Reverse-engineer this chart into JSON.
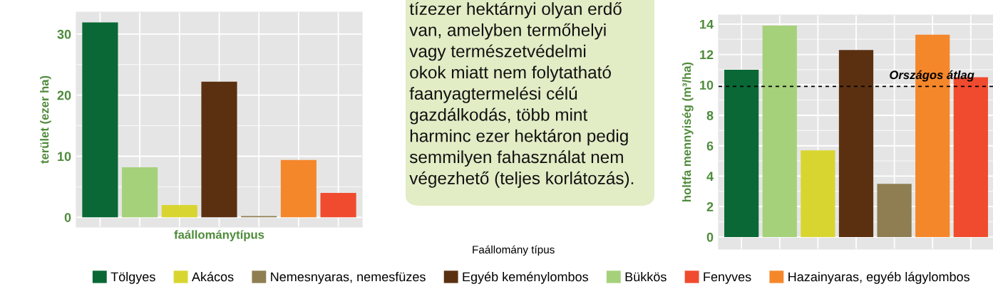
{
  "chart_data": [
    {
      "type": "bar",
      "xlabel": "faállománytípus",
      "ylabel": "terület (ezer ha)",
      "categories": [
        null,
        null,
        null,
        null,
        null,
        null,
        null
      ],
      "values": [
        31.9,
        8.2,
        2.0,
        22.2,
        0.2,
        9.4,
        4.0
      ],
      "colors": [
        "#0a6836",
        "#a5d17a",
        "#d9d530",
        "#5b3011",
        "#8e7e52",
        "#f5872b",
        "#f04b2e"
      ],
      "ylim": [
        -1.6,
        33.6
      ],
      "yticks": [
        0,
        {
          "value": 5,
          "label": null
        },
        10,
        {
          "value": 15,
          "label": null
        },
        20,
        {
          "value": 25,
          "label": null
        },
        30
      ],
      "grid": true,
      "tick_labels": "y"
    },
    {
      "type": "other",
      "annotations": [
        "tízezer hektárnyi olyan erdő\nvan, amelyben termőhelyi\nvagy természetvédelmi\nokok miatt nem folytatható\nfaanyagtermelési célú\ngazdálkodás, több mint\nharminc ezer hektáron pedig\nsemmilyen fahasználat nem\nvégezhető (teljes korlátozás)."
      ]
    },
    {
      "type": "bar",
      "ylabel": "holtfa mennyiség (m³/ha)",
      "legend_title": "Faállomány típus",
      "categories": [
        null,
        null,
        null,
        null,
        null,
        null,
        null
      ],
      "stacked": true,
      "series": [
        {
          "name": "Tölgyes",
          "color": "#0a6836",
          "values": [
            11.0,
            null,
            null,
            null,
            null,
            null,
            null
          ]
        },
        {
          "name": "Akácos",
          "color": "#d9d530",
          "values": [
            null,
            null,
            5.7,
            null,
            null,
            null,
            null
          ]
        },
        {
          "name": "Nemesnyaras, nemesfüzes",
          "color": "#8e7e52",
          "values": [
            null,
            null,
            null,
            null,
            3.5,
            null,
            null
          ]
        },
        {
          "name": "Egyéb keménylombos",
          "color": "#5b3011",
          "values": [
            null,
            null,
            null,
            12.3,
            null,
            null,
            null
          ]
        },
        {
          "name": "Bükkös",
          "color": "#a5d17a",
          "values": [
            null,
            13.9,
            null,
            null,
            null,
            null,
            null
          ]
        },
        {
          "name": "Fenyves",
          "color": "#f04b2e",
          "values": [
            null,
            null,
            null,
            null,
            null,
            null,
            10.5
          ]
        },
        {
          "name": "Hazainyaras, egyéb lágylombos",
          "color": "#f5872b",
          "values": [
            null,
            null,
            null,
            null,
            null,
            13.3,
            null
          ]
        }
      ],
      "ylim": [
        -0.8,
        14.6
      ],
      "yticks": [
        0,
        {
          "value": 1,
          "label": null
        },
        2,
        {
          "value": 3,
          "label": null
        },
        4,
        {
          "value": 5,
          "label": null
        },
        6,
        {
          "value": 7,
          "label": null
        },
        8,
        {
          "value": 9,
          "label": null
        },
        10,
        {
          "value": 11,
          "label": null
        },
        12,
        {
          "value": 13,
          "label": null
        },
        14
      ],
      "ref_lines": [
        {
          "axis": "y",
          "value": 9.9,
          "label": "Országos átlag",
          "color": "#000000",
          "line_style": "dashed"
        }
      ],
      "grid": true,
      "tick_labels": "y",
      "legend": "bottom"
    }
  ]
}
